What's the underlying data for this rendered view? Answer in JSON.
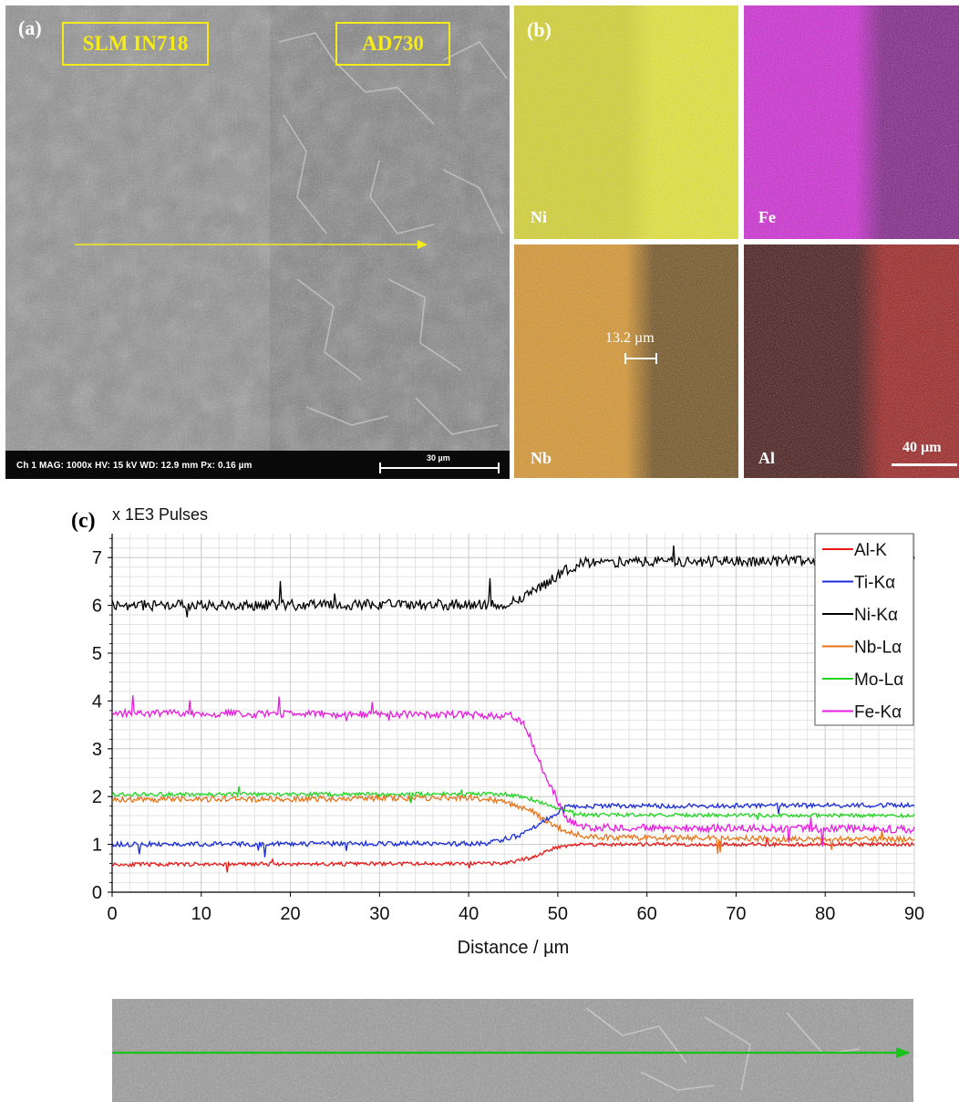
{
  "panel_a": {
    "letter": "(a)",
    "label_left": "SLM IN718",
    "label_right": "AD730",
    "info_text": "Ch 1   MAG: 1000x   HV: 15 kV   WD: 12.9 mm   Px: 0.16 µm",
    "scale_bar": "30 µm"
  },
  "panel_b": {
    "letter": "(b)",
    "maps": [
      {
        "element": "Ni",
        "color_left": "#d8d624",
        "color_right": "#eaea2c"
      },
      {
        "element": "Fe",
        "color_left": "#d01ed6",
        "color_right": "#7a1683"
      },
      {
        "element": "Nb",
        "color_left": "#d99222",
        "color_right": "#6e4a14"
      },
      {
        "element": "Al",
        "color_left": "#3c0a0a",
        "color_right": "#9a1414"
      }
    ],
    "width_annotation": "13.2 µm",
    "scale_bar": "40 µm"
  },
  "panel_c": {
    "letter": "(c)",
    "chart_data": {
      "type": "line",
      "ylabel": "x 1E3 Pulses",
      "xlabel": "Distance / µm",
      "xlim": [
        0,
        90
      ],
      "ylim": [
        0,
        7.5
      ],
      "xticks": [
        "0",
        "10",
        "20",
        "30",
        "40",
        "50",
        "60",
        "70",
        "80",
        "90"
      ],
      "yticks": [
        "0",
        "1",
        "2",
        "3",
        "4",
        "5",
        "6",
        "7"
      ],
      "grid": true,
      "legend_position": "top-right",
      "series": [
        {
          "name": "Al-K",
          "color": "#e81818",
          "points": [
            [
              0,
              0.58
            ],
            [
              44,
              0.6
            ],
            [
              47,
              0.72
            ],
            [
              50,
              0.95
            ],
            [
              52,
              1.0
            ],
            [
              90,
              1.0
            ]
          ]
        },
        {
          "name": "Ti-Kα",
          "color": "#1a2cd8",
          "points": [
            [
              0,
              1.0
            ],
            [
              42,
              1.02
            ],
            [
              46,
              1.2
            ],
            [
              49,
              1.55
            ],
            [
              51,
              1.8
            ],
            [
              90,
              1.82
            ]
          ]
        },
        {
          "name": "Ni-Kα",
          "color": "#000000",
          "points": [
            [
              0,
              6.0
            ],
            [
              44,
              6.02
            ],
            [
              47,
              6.25
            ],
            [
              49,
              6.5
            ],
            [
              51,
              6.75
            ],
            [
              53,
              6.9
            ],
            [
              90,
              6.95
            ]
          ]
        },
        {
          "name": "Nb-Lα",
          "color": "#e8731a",
          "points": [
            [
              0,
              1.93
            ],
            [
              40,
              1.98
            ],
            [
              44,
              1.9
            ],
            [
              47,
              1.7
            ],
            [
              50,
              1.35
            ],
            [
              53,
              1.15
            ],
            [
              90,
              1.1
            ]
          ]
        },
        {
          "name": "Mo-Lα",
          "color": "#22d422",
          "points": [
            [
              0,
              2.05
            ],
            [
              44,
              2.05
            ],
            [
              47,
              1.95
            ],
            [
              50,
              1.75
            ],
            [
              53,
              1.62
            ],
            [
              90,
              1.6
            ]
          ]
        },
        {
          "name": "Fe-Kα",
          "color": "#e81ce0",
          "points": [
            [
              0,
              3.75
            ],
            [
              45,
              3.7
            ],
            [
              46.5,
              3.45
            ],
            [
              47.5,
              2.9
            ],
            [
              48.5,
              2.5
            ],
            [
              49.5,
              2.1
            ],
            [
              51,
              1.55
            ],
            [
              53,
              1.35
            ],
            [
              90,
              1.32
            ]
          ]
        }
      ]
    }
  }
}
